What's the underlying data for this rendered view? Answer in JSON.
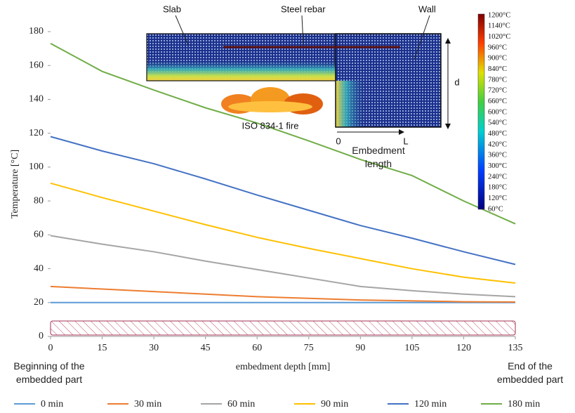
{
  "chart_data": {
    "type": "line",
    "x_label": "embedment depth [mm]",
    "y_label": "Temperature [°C]",
    "x": [
      0,
      15,
      30,
      45,
      60,
      75,
      90,
      105,
      120,
      135
    ],
    "xlim": [
      0,
      135
    ],
    "xticks": [
      0,
      15,
      30,
      45,
      60,
      75,
      90,
      105,
      120,
      135
    ],
    "ylim": [
      0,
      180
    ],
    "yticks": [
      0,
      20,
      40,
      60,
      80,
      100,
      120,
      140,
      160,
      180
    ],
    "x_start_label": "Beginning of the embedded part",
    "x_end_label": "End of the embedded part",
    "series": [
      {
        "name": "0 min",
        "color": "#5b9bd5",
        "values": [
          20,
          20,
          20,
          20,
          20,
          20,
          20,
          20,
          20,
          20
        ]
      },
      {
        "name": "30 min",
        "color": "#ed7d31",
        "values": [
          29.5,
          28,
          26.5,
          25,
          23.5,
          22.5,
          21.5,
          21,
          20.5,
          20.3
        ]
      },
      {
        "name": "60 min",
        "color": "#a5a5a5",
        "values": [
          59.5,
          54.5,
          50,
          44.5,
          39.5,
          34.5,
          29.5,
          27,
          25,
          23.5
        ]
      },
      {
        "name": "90 min",
        "color": "#ffc000",
        "values": [
          90.5,
          82,
          74,
          66,
          58.5,
          52,
          46,
          40,
          35,
          31.5
        ]
      },
      {
        "name": "120 min",
        "color": "#4472c4",
        "values": [
          118,
          109.5,
          102,
          93,
          83.5,
          74.5,
          65.5,
          58,
          50,
          42.5
        ]
      },
      {
        "name": "180 min",
        "color": "#70ad47",
        "values": [
          173,
          156.5,
          145.5,
          135,
          126,
          115.5,
          104.5,
          95,
          80,
          66.5
        ]
      }
    ]
  },
  "inset": {
    "slab": "Slab",
    "rebar": "Steel rebar",
    "wall": "Wall",
    "fire": "ISO 834-1 fire",
    "origin": "0",
    "end": "L",
    "length": "Embedment length",
    "depth": "d",
    "colorbar": [
      "1200°C",
      "1140°C",
      "1020°C",
      "960°C",
      "900°C",
      "840°C",
      "780°C",
      "720°C",
      "660°C",
      "600°C",
      "540°C",
      "480°C",
      "420°C",
      "360°C",
      "300°C",
      "240°C",
      "180°C",
      "120°C",
      "60°C"
    ]
  }
}
